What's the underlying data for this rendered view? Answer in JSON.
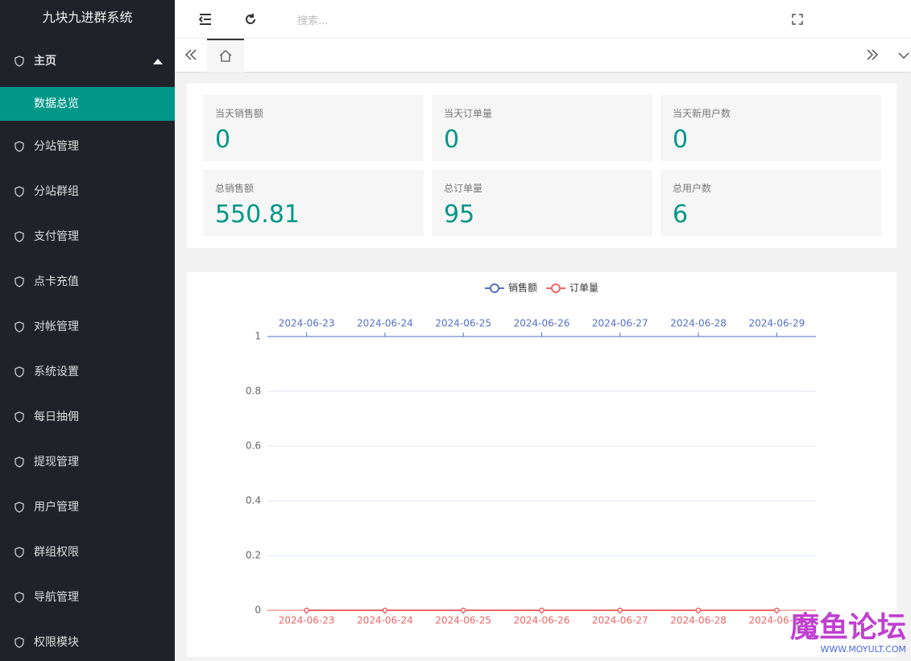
{
  "sidebar": {
    "brand": "九块九进群系统",
    "menu": [
      {
        "label": "主页"
      },
      {
        "label": "数据总览"
      },
      {
        "label": "分站管理"
      },
      {
        "label": "分站群组"
      },
      {
        "label": "支付管理"
      },
      {
        "label": "点卡充值"
      },
      {
        "label": "对帐管理"
      },
      {
        "label": "系统设置"
      },
      {
        "label": "每日抽佣"
      },
      {
        "label": "提现管理"
      },
      {
        "label": "用户管理"
      },
      {
        "label": "群组权限"
      },
      {
        "label": "导航管理"
      },
      {
        "label": "权限模块"
      }
    ]
  },
  "header": {
    "search_placeholder": "搜索..."
  },
  "stats": [
    {
      "label": "当天销售额",
      "value": 0
    },
    {
      "label": "当天订单量",
      "value": 0
    },
    {
      "label": "当天新用户数",
      "value": 0
    },
    {
      "label": "总销售额",
      "value": 550.81
    },
    {
      "label": "总订单量",
      "value": 95
    },
    {
      "label": "总用户数",
      "value": 6
    }
  ],
  "chart_data": {
    "type": "line",
    "categories": [
      "2024-06-23",
      "2024-06-24",
      "2024-06-25",
      "2024-06-26",
      "2024-06-27",
      "2024-06-28",
      "2024-06-29"
    ],
    "series": [
      {
        "name": "销售额",
        "color": "#5470c6",
        "values": [
          0,
          0,
          0,
          0,
          0,
          0,
          0
        ]
      },
      {
        "name": "订单量",
        "color": "#ee6666",
        "values": [
          0,
          0,
          0,
          0,
          0,
          0,
          0
        ]
      }
    ],
    "ylim": [
      0,
      1
    ],
    "yticks": [
      0,
      0.2,
      0.4,
      0.6,
      0.8,
      1
    ],
    "grid": true
  },
  "watermark": {
    "title": "魔鱼论坛",
    "url": "WWW.MOYULT.COM"
  }
}
